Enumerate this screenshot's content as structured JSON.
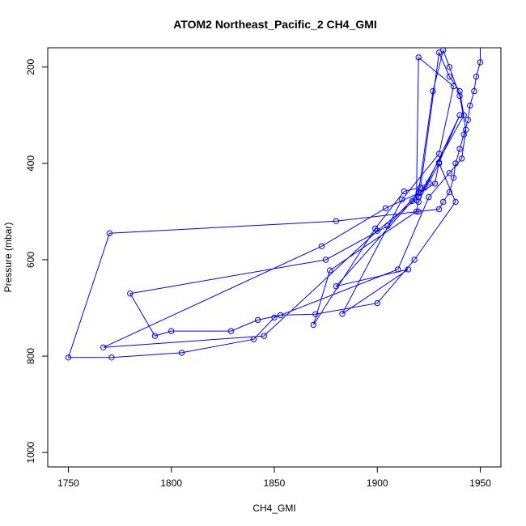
{
  "chart_data": {
    "type": "line",
    "title": "ATOM2 Northeast_Pacific_2 CH4_GMI",
    "xlabel": "CH4_GMI",
    "ylabel": "Pressure (mbar)",
    "xlim": [
      1740,
      1960
    ],
    "ylim": [
      1030,
      160
    ],
    "y_reversed": true,
    "grid": false,
    "legend": "none",
    "line_color": "#0000ff",
    "marker": "open-circle",
    "x_ticks": [
      1750,
      1800,
      1850,
      1900,
      1950
    ],
    "x_tick_labels": [
      "1750",
      "1800",
      "1850",
      "1900",
      "1950"
    ],
    "y_ticks": [
      200,
      400,
      600,
      800,
      1000
    ],
    "y_tick_labels": [
      "200",
      "400",
      "600",
      "800",
      "1000"
    ],
    "series": [
      {
        "x": [
          1950,
          1950,
          1948,
          1947,
          1945,
          1944,
          1942,
          1940,
          1938,
          1937,
          1935,
          1932,
          1930,
          1920,
          1880,
          1770,
          1750,
          1771,
          1805,
          1840,
          1850,
          1910,
          1925,
          1935,
          1941,
          1943,
          1940,
          1935,
          1932,
          1927,
          1920,
          1905,
          1875,
          1780,
          1792,
          1800,
          1829,
          1842,
          1853,
          1870,
          1900,
          1918,
          1938,
          1930,
          1925,
          1923,
          1921,
          1904,
          1873,
          1767,
          1845,
          1900,
          1920,
          1942,
          1940,
          1935,
          1930,
          1921,
          1913,
          1899,
          1869,
          1877,
          1919,
          1920,
          1940,
          1930,
          1928,
          1920,
          1917,
          1880,
          1915,
          1883,
          1912,
          1930,
          1937,
          1920,
          1919
        ],
        "y": [
          160,
          190,
          220,
          250,
          280,
          310,
          340,
          370,
          400,
          430,
          460,
          480,
          495,
          500,
          520,
          545,
          803,
          803,
          793,
          765,
          720,
          620,
          470,
          420,
          390,
          330,
          260,
          200,
          165,
          250,
          460,
          530,
          600,
          670,
          758,
          748,
          748,
          725,
          715,
          713,
          690,
          600,
          480,
          400,
          440,
          450,
          460,
          493,
          572,
          782,
          758,
          540,
          470,
          300,
          250,
          220,
          170,
          450,
          458,
          535,
          735,
          622,
          500,
          480,
          300,
          398,
          442,
          462,
          478,
          655,
          620,
          712,
          475,
          380,
          240,
          180,
          476
        ]
      }
    ]
  }
}
